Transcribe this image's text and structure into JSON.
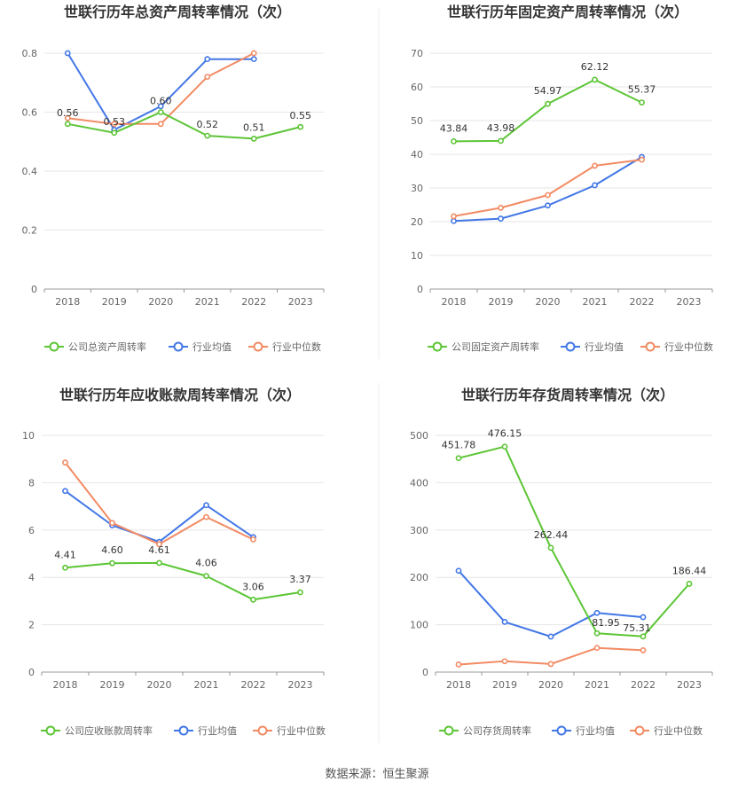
{
  "source": "数据来源：恒生聚源",
  "colors": {
    "company": "#5cc535",
    "avg": "#4277e6",
    "median": "#f28b64",
    "grid": "#e6e6e6",
    "axis": "#999999",
    "text": "#666666",
    "title": "#333333"
  },
  "chart_data": [
    {
      "type": "line",
      "title": "世联行历年总资产周转率情况（次）",
      "categories": [
        "2018",
        "2019",
        "2020",
        "2021",
        "2022",
        "2023"
      ],
      "ylim": [
        0,
        0.8
      ],
      "yticks": [
        "0",
        "0.2",
        "0.4",
        "0.6",
        "0.8"
      ],
      "series": [
        {
          "name": "公司总资产周转率",
          "key": "company",
          "values": [
            0.56,
            0.53,
            0.6,
            0.52,
            0.51,
            0.55
          ],
          "labels": [
            "0.56",
            "0.53",
            "0.60",
            "0.52",
            "0.51",
            "0.55"
          ]
        },
        {
          "name": "行业均值",
          "key": "avg",
          "values": [
            0.8,
            0.54,
            0.62,
            0.78,
            0.78,
            null
          ]
        },
        {
          "name": "行业中位数",
          "key": "median",
          "values": [
            0.58,
            0.56,
            0.56,
            0.72,
            0.8,
            null
          ]
        }
      ]
    },
    {
      "type": "line",
      "title": "世联行历年固定资产周转率情况（次）",
      "categories": [
        "2018",
        "2019",
        "2020",
        "2021",
        "2022",
        "2023"
      ],
      "ylim": [
        0,
        70
      ],
      "yticks": [
        "0",
        "10",
        "20",
        "30",
        "40",
        "50",
        "60",
        "70"
      ],
      "series": [
        {
          "name": "公司固定资产周转率",
          "key": "company",
          "values": [
            43.84,
            43.98,
            54.97,
            62.12,
            55.37,
            null
          ],
          "labels": [
            "43.84",
            "43.98",
            "54.97",
            "62.12",
            "55.37",
            null
          ]
        },
        {
          "name": "行业均值",
          "key": "avg",
          "values": [
            20.2,
            20.9,
            24.8,
            30.8,
            39.2,
            null
          ]
        },
        {
          "name": "行业中位数",
          "key": "median",
          "values": [
            21.6,
            24.1,
            27.9,
            36.6,
            38.4,
            null
          ]
        }
      ]
    },
    {
      "type": "line",
      "title": "世联行历年应收账款周转率情况（次）",
      "categories": [
        "2018",
        "2019",
        "2020",
        "2021",
        "2022",
        "2023"
      ],
      "ylim": [
        0,
        10
      ],
      "yticks": [
        "0",
        "2",
        "4",
        "6",
        "8",
        "10"
      ],
      "series": [
        {
          "name": "公司应收账款周转率",
          "key": "company",
          "values": [
            4.41,
            4.6,
            4.61,
            4.06,
            3.06,
            3.37
          ],
          "labels": [
            "4.41",
            "4.60",
            "4.61",
            "4.06",
            "3.06",
            "3.37"
          ]
        },
        {
          "name": "行业均值",
          "key": "avg",
          "values": [
            7.65,
            6.2,
            5.5,
            7.05,
            5.7,
            null
          ]
        },
        {
          "name": "行业中位数",
          "key": "median",
          "values": [
            8.85,
            6.3,
            5.4,
            6.55,
            5.6,
            null
          ]
        }
      ]
    },
    {
      "type": "line",
      "title": "世联行历年存货周转率情况（次）",
      "categories": [
        "2018",
        "2019",
        "2020",
        "2021",
        "2022",
        "2023"
      ],
      "ylim": [
        0,
        500
      ],
      "yticks": [
        "0",
        "100",
        "200",
        "300",
        "400",
        "500"
      ],
      "series": [
        {
          "name": "公司存货周转率",
          "key": "company",
          "values": [
            451.78,
            476.15,
            262.44,
            81.95,
            75.31,
            186.44
          ],
          "labels": [
            "451.78",
            "476.15",
            "262.44",
            "81.95",
            "75.31",
            "186.44"
          ]
        },
        {
          "name": "行业均值",
          "key": "avg",
          "values": [
            214,
            106,
            75,
            125,
            116,
            null
          ]
        },
        {
          "name": "行业中位数",
          "key": "median",
          "values": [
            16,
            23,
            17,
            51,
            46,
            null
          ]
        }
      ]
    }
  ]
}
